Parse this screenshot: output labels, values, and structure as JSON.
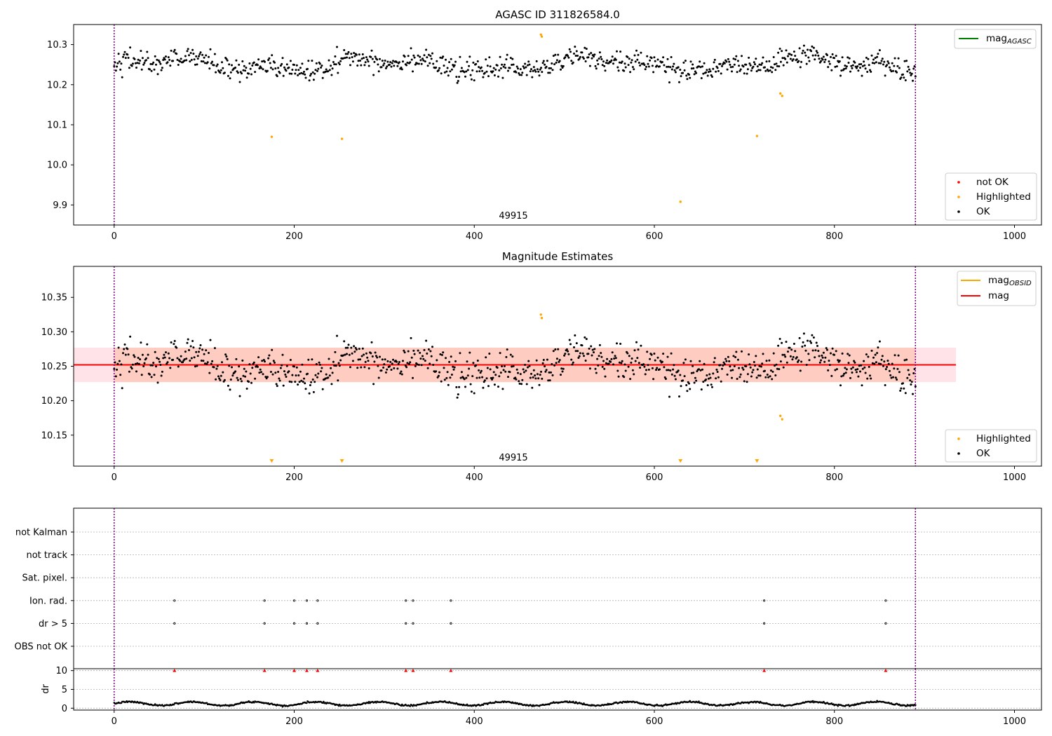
{
  "chart_data": [
    {
      "type": "scatter",
      "title": "AGASC ID 311826584.0",
      "xlim": [
        -45,
        1030
      ],
      "ylim": [
        9.85,
        10.35
      ],
      "xticks": [
        "0",
        "200",
        "400",
        "600",
        "800",
        "1000"
      ],
      "yticks": [
        "9.9",
        "10.0",
        "10.1",
        "10.2",
        "10.3"
      ],
      "legend_lines": [
        {
          "label": "mag",
          "subscript": "AGASC",
          "color": "#008000"
        }
      ],
      "legend_lines_position": "top-right",
      "legend_points": [
        {
          "label": "not OK",
          "color": "#ff0000"
        },
        {
          "label": "Highlighted",
          "color": "#ffa500"
        },
        {
          "label": "OK",
          "color": "#000000"
        }
      ],
      "legend_points_position": "lower-right",
      "obsid_label": "49915",
      "obs_bounds": [
        0,
        890
      ],
      "series": [
        {
          "name": "OK",
          "model": {
            "mean": 10.25,
            "amp": 0.02,
            "noise": 0.022,
            "x_start": 0,
            "x_end": 890,
            "n": 900
          }
        },
        {
          "name": "Highlighted",
          "x": [
            175,
            253,
            474,
            475,
            629,
            714,
            740,
            742
          ],
          "y": [
            10.07,
            10.065,
            10.325,
            10.32,
            9.908,
            10.072,
            10.178,
            10.172
          ]
        }
      ]
    },
    {
      "type": "scatter",
      "title": "Magnitude Estimates",
      "xlim": [
        -45,
        1030
      ],
      "ylim": [
        10.105,
        10.395
      ],
      "xticks": [
        "0",
        "200",
        "400",
        "600",
        "800",
        "1000"
      ],
      "yticks": [
        "10.15",
        "10.20",
        "10.25",
        "10.30",
        "10.35"
      ],
      "legend_lines": [
        {
          "label": "mag",
          "subscript": "OBSID",
          "color": "#ffa500"
        },
        {
          "label": "mag",
          "subscript": "",
          "color": "#ff0000"
        }
      ],
      "legend_lines_position": "top-right",
      "legend_points": [
        {
          "label": "Highlighted",
          "color": "#ffa500"
        },
        {
          "label": "OK",
          "color": "#000000"
        }
      ],
      "legend_points_position": "lower-right",
      "obsid_label": "49915",
      "obs_bounds": [
        0,
        890
      ],
      "mag_line": 10.252,
      "band": {
        "low": 10.227,
        "high": 10.277,
        "x_start": -45,
        "x_end": 935
      },
      "obsid_band": {
        "low": 10.227,
        "high": 10.277,
        "x_start": 0,
        "x_end": 890
      },
      "series": [
        {
          "name": "OK",
          "model": {
            "mean": 10.25,
            "amp": 0.02,
            "noise": 0.022,
            "x_start": 0,
            "x_end": 890,
            "n": 900
          }
        },
        {
          "name": "Highlighted",
          "x": [
            474,
            475,
            740,
            742
          ],
          "y": [
            10.325,
            10.32,
            10.178,
            10.173
          ]
        },
        {
          "name": "Highlighted (below range)",
          "marker": "triangle-down",
          "x": [
            175,
            253,
            629,
            714
          ],
          "y": [
            10.11,
            10.11,
            10.11,
            10.11
          ]
        }
      ]
    },
    {
      "type": "scatter",
      "title": "",
      "xlim": [
        -45,
        1030
      ],
      "xticks": [
        "0",
        "200",
        "400",
        "600",
        "800",
        "1000"
      ],
      "flag_rows": [
        "not Kalman",
        "not track",
        "Sat. pixel.",
        "Ion. rad.",
        "dr > 5",
        "OBS not OK"
      ],
      "flags": {
        "Ion. rad.": [
          67,
          167,
          200,
          214,
          226,
          324,
          332,
          374,
          722,
          857
        ],
        "dr > 5": [
          67,
          167,
          200,
          214,
          226,
          324,
          332,
          374,
          722,
          857
        ]
      },
      "obs_bounds": [
        0,
        890
      ],
      "dr": {
        "ylabel": "dr",
        "ylim": [
          -0.5,
          10.5
        ],
        "yticks": [
          "0",
          "5",
          "10"
        ],
        "clipped_x": [
          67,
          167,
          200,
          214,
          226,
          324,
          332,
          374,
          722,
          857
        ],
        "clipped_y": 10,
        "series": {
          "name": "dr",
          "model": {
            "base": 1.2,
            "amp": 0.5,
            "noise": 0.25,
            "x_start": 0,
            "x_end": 890,
            "n": 900
          }
        }
      }
    }
  ]
}
